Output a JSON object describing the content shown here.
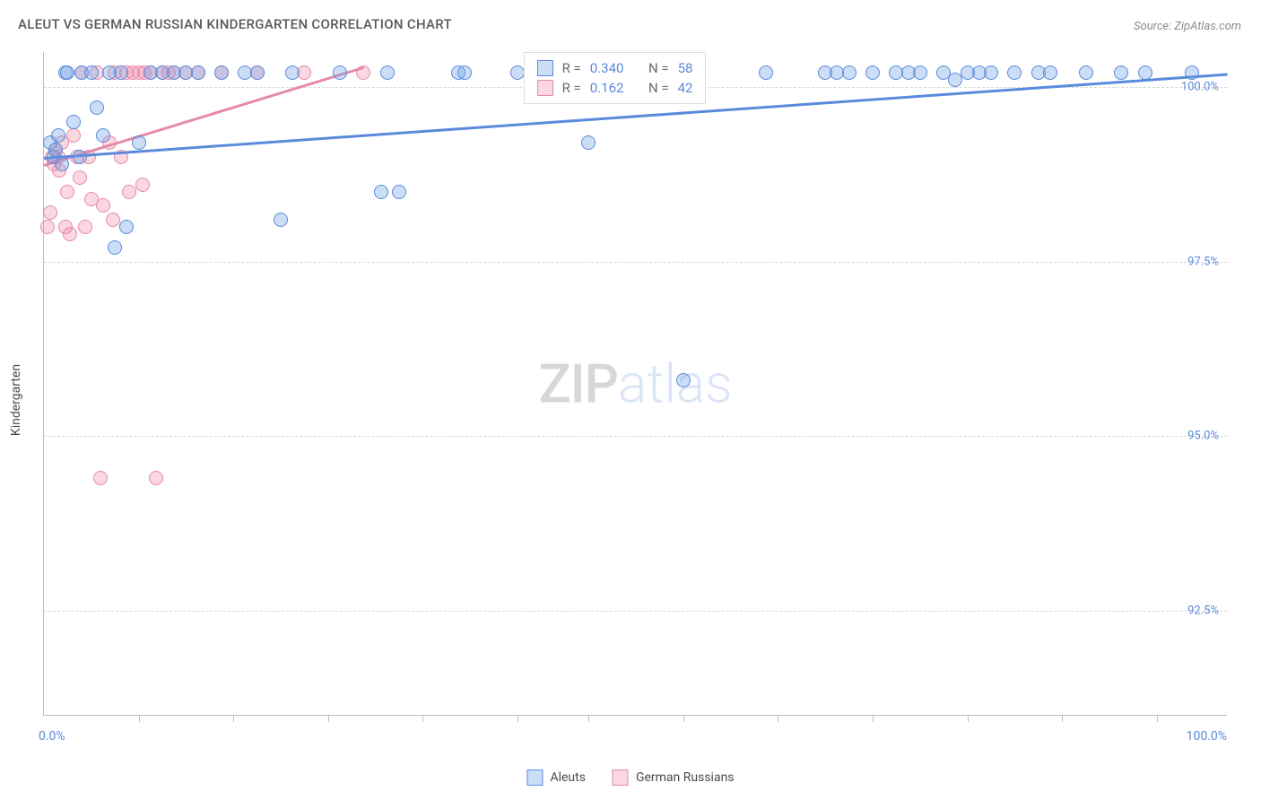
{
  "title": "ALEUT VS GERMAN RUSSIAN KINDERGARTEN CORRELATION CHART",
  "source": "Source: ZipAtlas.com",
  "ylabel": "Kindergarten",
  "watermark": {
    "zip": "ZIP",
    "atlas": "atlas"
  },
  "chart": {
    "type": "scatter",
    "background_color": "#ffffff",
    "grid_color": "#d6d6d6",
    "axis_color": "#bfbfbf",
    "label_color": "#5a8adc",
    "title_color": "#5a5a5a",
    "title_fontsize": 15,
    "label_fontsize": 14,
    "xlim": [
      0,
      100
    ],
    "ylim": [
      91.0,
      100.5
    ],
    "yticks": [
      {
        "value": 92.5,
        "label": "92.5%"
      },
      {
        "value": 95.0,
        "label": "95.0%"
      },
      {
        "value": 97.5,
        "label": "97.5%"
      },
      {
        "value": 100.0,
        "label": "100.0%"
      }
    ],
    "xticks_major": [
      0,
      100
    ],
    "xticks_minor": [
      8,
      16,
      24,
      32,
      40,
      46,
      54,
      62,
      70,
      78,
      86,
      94
    ],
    "xtick_labels": [
      {
        "value": 0,
        "label": "0.0%"
      },
      {
        "value": 100,
        "label": "100.0%"
      }
    ],
    "marker_radius": 8,
    "marker_stroke_width": 1.5,
    "line_width": 2.5,
    "series": {
      "aleuts": {
        "name": "Aleuts",
        "fill_color": "rgba(110,160,230,0.35)",
        "stroke_color": "#5a8adc",
        "r_value": "0.340",
        "n_value": "58",
        "trend": {
          "x1": 0,
          "y1": 99.0,
          "x2": 100,
          "y2": 100.2
        },
        "points": [
          [
            0.5,
            99.2
          ],
          [
            0.8,
            99.0
          ],
          [
            1.0,
            99.1
          ],
          [
            1.2,
            99.3
          ],
          [
            1.5,
            98.9
          ],
          [
            1.8,
            100.2
          ],
          [
            2.0,
            100.2
          ],
          [
            2.5,
            99.5
          ],
          [
            3.0,
            99.0
          ],
          [
            3.2,
            100.2
          ],
          [
            4.0,
            100.2
          ],
          [
            4.5,
            99.7
          ],
          [
            5.0,
            99.3
          ],
          [
            5.5,
            100.2
          ],
          [
            6.0,
            97.7
          ],
          [
            6.5,
            100.2
          ],
          [
            7.0,
            98.0
          ],
          [
            8.0,
            99.2
          ],
          [
            9.0,
            100.2
          ],
          [
            10.0,
            100.2
          ],
          [
            11.0,
            100.2
          ],
          [
            12.0,
            100.2
          ],
          [
            13.0,
            100.2
          ],
          [
            15.0,
            100.2
          ],
          [
            17.0,
            100.2
          ],
          [
            18.0,
            100.2
          ],
          [
            20.0,
            98.1
          ],
          [
            21.0,
            100.2
          ],
          [
            25.0,
            100.2
          ],
          [
            28.5,
            98.5
          ],
          [
            29.0,
            100.2
          ],
          [
            30.0,
            98.5
          ],
          [
            35.0,
            100.2
          ],
          [
            35.5,
            100.2
          ],
          [
            40.0,
            100.2
          ],
          [
            43.0,
            100.2
          ],
          [
            46.0,
            99.2
          ],
          [
            54.0,
            95.8
          ],
          [
            61.0,
            100.2
          ],
          [
            66.0,
            100.2
          ],
          [
            67.0,
            100.2
          ],
          [
            68.0,
            100.2
          ],
          [
            70.0,
            100.2
          ],
          [
            72.0,
            100.2
          ],
          [
            73.0,
            100.2
          ],
          [
            74.0,
            100.2
          ],
          [
            76.0,
            100.2
          ],
          [
            77.0,
            100.1
          ],
          [
            78.0,
            100.2
          ],
          [
            79.0,
            100.2
          ],
          [
            80.0,
            100.2
          ],
          [
            82.0,
            100.2
          ],
          [
            84.0,
            100.2
          ],
          [
            85.0,
            100.2
          ],
          [
            88.0,
            100.2
          ],
          [
            91.0,
            100.2
          ],
          [
            93.0,
            100.2
          ],
          [
            97.0,
            100.2
          ]
        ]
      },
      "german_russians": {
        "name": "German Russians",
        "fill_color": "rgba(240,140,170,0.35)",
        "stroke_color": "#e68aa8",
        "r_value": "0.162",
        "n_value": "42",
        "trend": {
          "x1": 0,
          "y1": 98.9,
          "x2": 27,
          "y2": 100.3
        },
        "points": [
          [
            0.3,
            98.0
          ],
          [
            0.5,
            98.2
          ],
          [
            0.7,
            99.0
          ],
          [
            0.8,
            98.9
          ],
          [
            1.0,
            99.1
          ],
          [
            1.2,
            99.0
          ],
          [
            1.3,
            98.8
          ],
          [
            1.5,
            99.2
          ],
          [
            1.8,
            98.0
          ],
          [
            2.0,
            98.5
          ],
          [
            2.2,
            97.9
          ],
          [
            2.5,
            99.3
          ],
          [
            2.8,
            99.0
          ],
          [
            3.0,
            98.7
          ],
          [
            3.2,
            100.2
          ],
          [
            3.5,
            98.0
          ],
          [
            3.8,
            99.0
          ],
          [
            4.0,
            98.4
          ],
          [
            4.5,
            100.2
          ],
          [
            4.8,
            94.4
          ],
          [
            5.0,
            98.3
          ],
          [
            5.5,
            99.2
          ],
          [
            5.8,
            98.1
          ],
          [
            6.0,
            100.2
          ],
          [
            6.5,
            99.0
          ],
          [
            7.0,
            100.2
          ],
          [
            7.2,
            98.5
          ],
          [
            7.5,
            100.2
          ],
          [
            8.0,
            100.2
          ],
          [
            8.3,
            98.6
          ],
          [
            8.5,
            100.2
          ],
          [
            9.0,
            100.2
          ],
          [
            9.5,
            94.4
          ],
          [
            10.0,
            100.2
          ],
          [
            10.5,
            100.2
          ],
          [
            11.0,
            100.2
          ],
          [
            12.0,
            100.2
          ],
          [
            13.0,
            100.2
          ],
          [
            15.0,
            100.2
          ],
          [
            18.0,
            100.2
          ],
          [
            22.0,
            100.2
          ],
          [
            27.0,
            100.2
          ]
        ]
      }
    },
    "stat_box": {
      "left_pct": 40.5,
      "top_y": 100.5
    },
    "stat_labels": {
      "r": "R =",
      "n": "N ="
    }
  }
}
